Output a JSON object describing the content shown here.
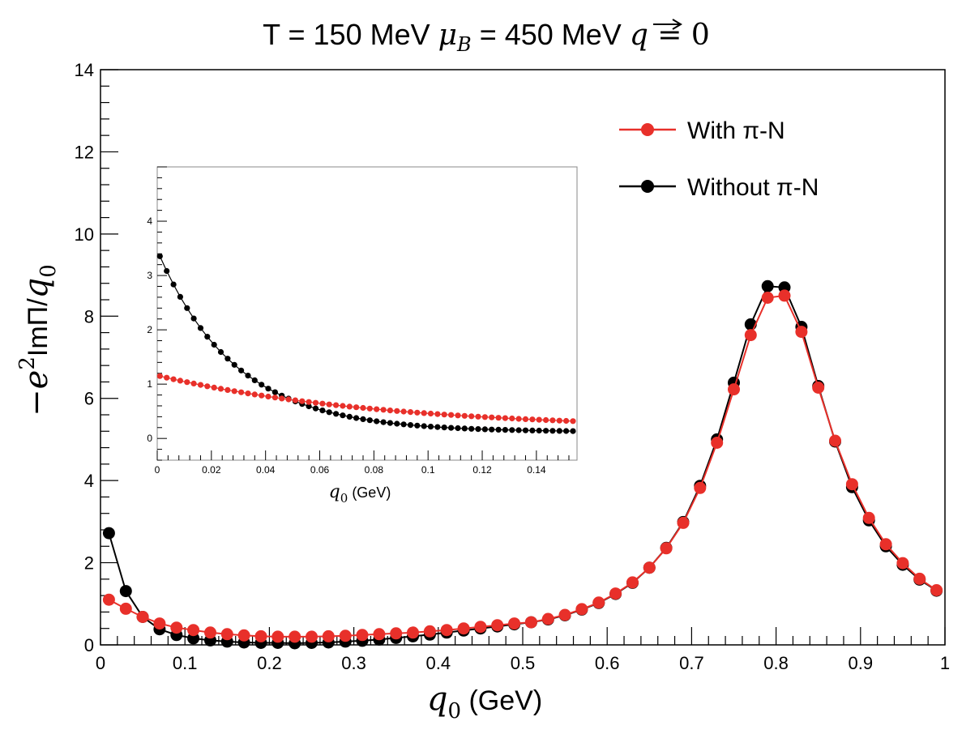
{
  "chart_data": {
    "type": "line",
    "title": {
      "prefix": "T = 150 MeV ",
      "mu_symbol": "μ",
      "mu_sub": "B",
      "middle": " = 450 MeV ",
      "q_symbol": "q",
      "suffix": " = 0"
    },
    "xlabel": {
      "symbol": "q",
      "sub": "0",
      "unit": " (GeV)"
    },
    "ylabel": {
      "prefix": "−e",
      "sup": "2",
      "mid": "ImΠ/",
      "q": "q",
      "sub": "0"
    },
    "xlim": [
      0,
      1
    ],
    "ylim": [
      0,
      14
    ],
    "xticks": [
      "0",
      "0.1",
      "0.2",
      "0.3",
      "0.4",
      "0.5",
      "0.6",
      "0.7",
      "0.8",
      "0.9",
      "1"
    ],
    "yticks": [
      "0",
      "2",
      "4",
      "6",
      "8",
      "10",
      "12",
      "14"
    ],
    "legend": {
      "position": "top-right"
    },
    "colors": {
      "with": "#e8302a",
      "without": "#000000"
    },
    "x": [
      0.01,
      0.03,
      0.05,
      0.07,
      0.09,
      0.11,
      0.13,
      0.15,
      0.17,
      0.19,
      0.21,
      0.23,
      0.25,
      0.27,
      0.29,
      0.31,
      0.33,
      0.35,
      0.37,
      0.39,
      0.41,
      0.43,
      0.45,
      0.47,
      0.49,
      0.51,
      0.53,
      0.55,
      0.57,
      0.59,
      0.61,
      0.63,
      0.65,
      0.67,
      0.69,
      0.71,
      0.73,
      0.75,
      0.77,
      0.79,
      0.81,
      0.83,
      0.85,
      0.87,
      0.89,
      0.91,
      0.93,
      0.95,
      0.97,
      0.99
    ],
    "series": [
      {
        "name": "Without π-N",
        "color": "#000000",
        "values": [
          2.72,
          1.31,
          0.68,
          0.38,
          0.24,
          0.16,
          0.11,
          0.08,
          0.06,
          0.05,
          0.05,
          0.04,
          0.05,
          0.06,
          0.08,
          0.1,
          0.13,
          0.17,
          0.21,
          0.25,
          0.3,
          0.35,
          0.4,
          0.45,
          0.5,
          0.55,
          0.62,
          0.72,
          0.86,
          1.02,
          1.24,
          1.51,
          1.88,
          2.36,
          2.99,
          3.87,
          5.0,
          6.38,
          7.8,
          8.73,
          8.7,
          7.74,
          6.3,
          4.95,
          3.84,
          3.03,
          2.4,
          1.95,
          1.59,
          1.32
        ]
      },
      {
        "name": "With π-N",
        "color": "#e8302a",
        "values": [
          1.1,
          0.88,
          0.68,
          0.52,
          0.42,
          0.36,
          0.3,
          0.26,
          0.23,
          0.21,
          0.2,
          0.2,
          0.2,
          0.21,
          0.22,
          0.24,
          0.26,
          0.28,
          0.3,
          0.33,
          0.36,
          0.4,
          0.44,
          0.48,
          0.52,
          0.55,
          0.63,
          0.73,
          0.87,
          1.03,
          1.25,
          1.52,
          1.88,
          2.35,
          2.97,
          3.82,
          4.92,
          6.22,
          7.54,
          8.45,
          8.5,
          7.62,
          6.26,
          4.97,
          3.91,
          3.09,
          2.45,
          1.99,
          1.61,
          1.33
        ]
      }
    ],
    "inset": {
      "xlabel": {
        "symbol": "q",
        "sub": "0",
        "unit": " (GeV)"
      },
      "xlim": [
        0,
        0.155
      ],
      "ylim": [
        -0.4,
        5.0
      ],
      "xticks": [
        "0",
        "0.02",
        "0.04",
        "0.06",
        "0.08",
        "0.1",
        "0.12",
        "0.14"
      ],
      "yticks": [
        "0",
        "1",
        "2",
        "3",
        "4"
      ],
      "x_start": 0.001,
      "x_step": 0.0025,
      "count": 62,
      "series": [
        {
          "name": "Without π-N",
          "color": "#000000",
          "model": {
            "type": "exp",
            "a": 3.35,
            "k": 35,
            "c": 0.12
          }
        },
        {
          "name": "With π-N",
          "color": "#e8302a",
          "model": {
            "type": "exp",
            "a": 1.0,
            "k": 12,
            "c": 0.16
          }
        }
      ]
    }
  }
}
